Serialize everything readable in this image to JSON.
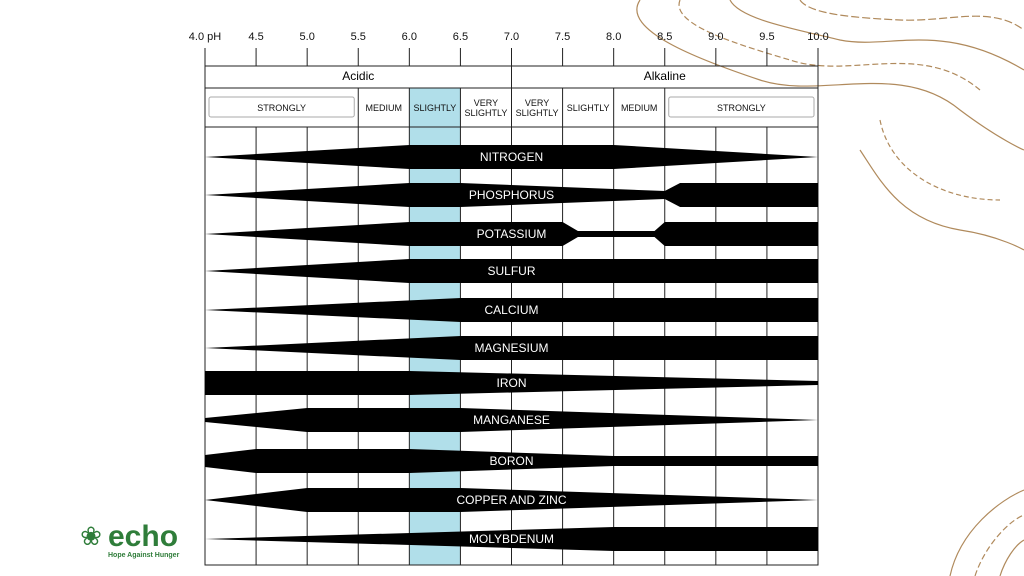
{
  "axis": {
    "ticks": [
      "4.0 pH",
      "4.5",
      "5.0",
      "5.5",
      "6.0",
      "6.5",
      "7.0",
      "7.5",
      "8.0",
      "8.5",
      "9.0",
      "9.5",
      "10.0"
    ]
  },
  "groups": [
    "Acidic",
    "Alkaline"
  ],
  "subgroups": [
    "STRONGLY",
    "MEDIUM",
    "SLIGHTLY",
    "VERY SLIGHTLY",
    "VERY SLIGHTLY",
    "SLIGHTLY",
    "MEDIUM",
    "STRONGLY"
  ],
  "nutrients": [
    "NITROGEN",
    "PHOSPHORUS",
    "POTASSIUM",
    "SULFUR",
    "CALCIUM",
    "MAGNESIUM",
    "IRON",
    "MANGANESE",
    "BORON",
    "COPPER AND ZINC",
    "MOLYBDENUM"
  ],
  "logo": {
    "name": "echo",
    "tagline": "Hope Against Hunger"
  }
}
